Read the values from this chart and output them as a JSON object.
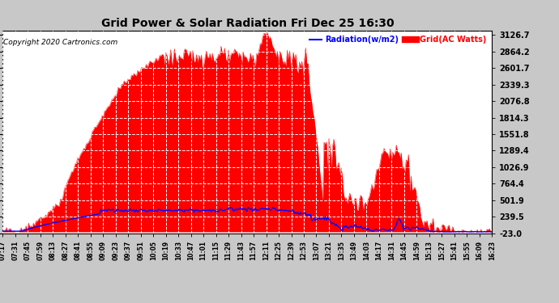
{
  "title": "Grid Power & Solar Radiation Fri Dec 25 16:30",
  "copyright": "Copyright 2020 Cartronics.com",
  "legend_radiation": "Radiation(w/m2)",
  "legend_grid": "Grid(AC Watts)",
  "yticks": [
    -23.0,
    239.5,
    501.9,
    764.4,
    1026.9,
    1289.4,
    1551.8,
    1814.3,
    2076.8,
    2339.3,
    2601.7,
    2864.2,
    3126.7
  ],
  "ymin": -23.0,
  "ymax": 3200.0,
  "background_color": "#c8c8c8",
  "plot_bg_color": "#ffffff",
  "grid_color": "#ffffff",
  "bar_color": "#ff0000",
  "line_color": "#0000ff",
  "title_color": "#000000",
  "xtick_labels": [
    "07:17",
    "07:31",
    "07:45",
    "07:59",
    "08:13",
    "08:27",
    "08:41",
    "08:55",
    "09:09",
    "09:23",
    "09:37",
    "09:51",
    "10:05",
    "10:19",
    "10:33",
    "10:47",
    "11:01",
    "11:15",
    "11:29",
    "11:43",
    "11:57",
    "12:11",
    "12:25",
    "12:39",
    "12:53",
    "13:07",
    "13:21",
    "13:35",
    "13:49",
    "14:03",
    "14:17",
    "14:31",
    "14:45",
    "14:59",
    "15:13",
    "15:27",
    "15:41",
    "15:55",
    "16:09",
    "16:23"
  ],
  "num_points": 400
}
